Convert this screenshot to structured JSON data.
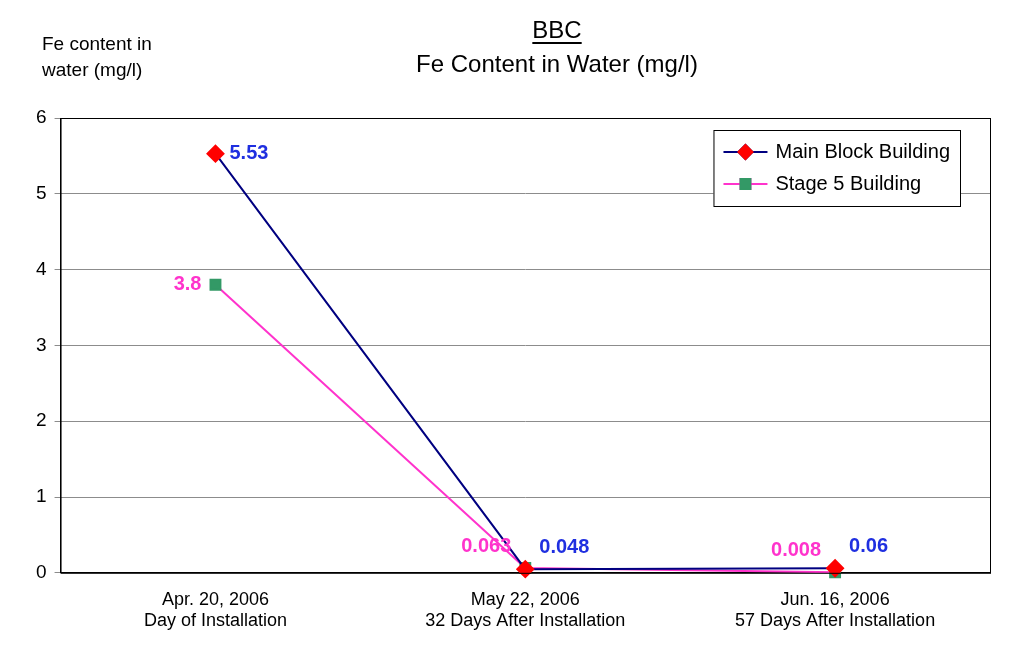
{
  "chart_data": {
    "type": "line",
    "title": "BBC",
    "subtitle": "Fe Content in Water (mg/l)",
    "y_label": "Fe content in water (mg/l)",
    "categories": [
      [
        "Apr. 20, 2006",
        "Day of Installation"
      ],
      [
        "May 22, 2006",
        "32 Days After Installation"
      ],
      [
        "Jun. 16, 2006",
        "57 Days After Installation"
      ]
    ],
    "series": [
      {
        "name": "Main Block Building",
        "color": "#000080",
        "marker": "diamond",
        "values": [
          5.53,
          0.048,
          0.06
        ]
      },
      {
        "name": "Stage 5 Building",
        "color": "#ff33cc",
        "marker": "square",
        "values": [
          3.8,
          0.063,
          0.008
        ]
      }
    ],
    "ylim": [
      0,
      6
    ],
    "yticks": [
      0,
      1,
      2,
      3,
      4,
      5,
      6
    ],
    "grid": true,
    "legend": "upper right",
    "data_labels": true
  }
}
